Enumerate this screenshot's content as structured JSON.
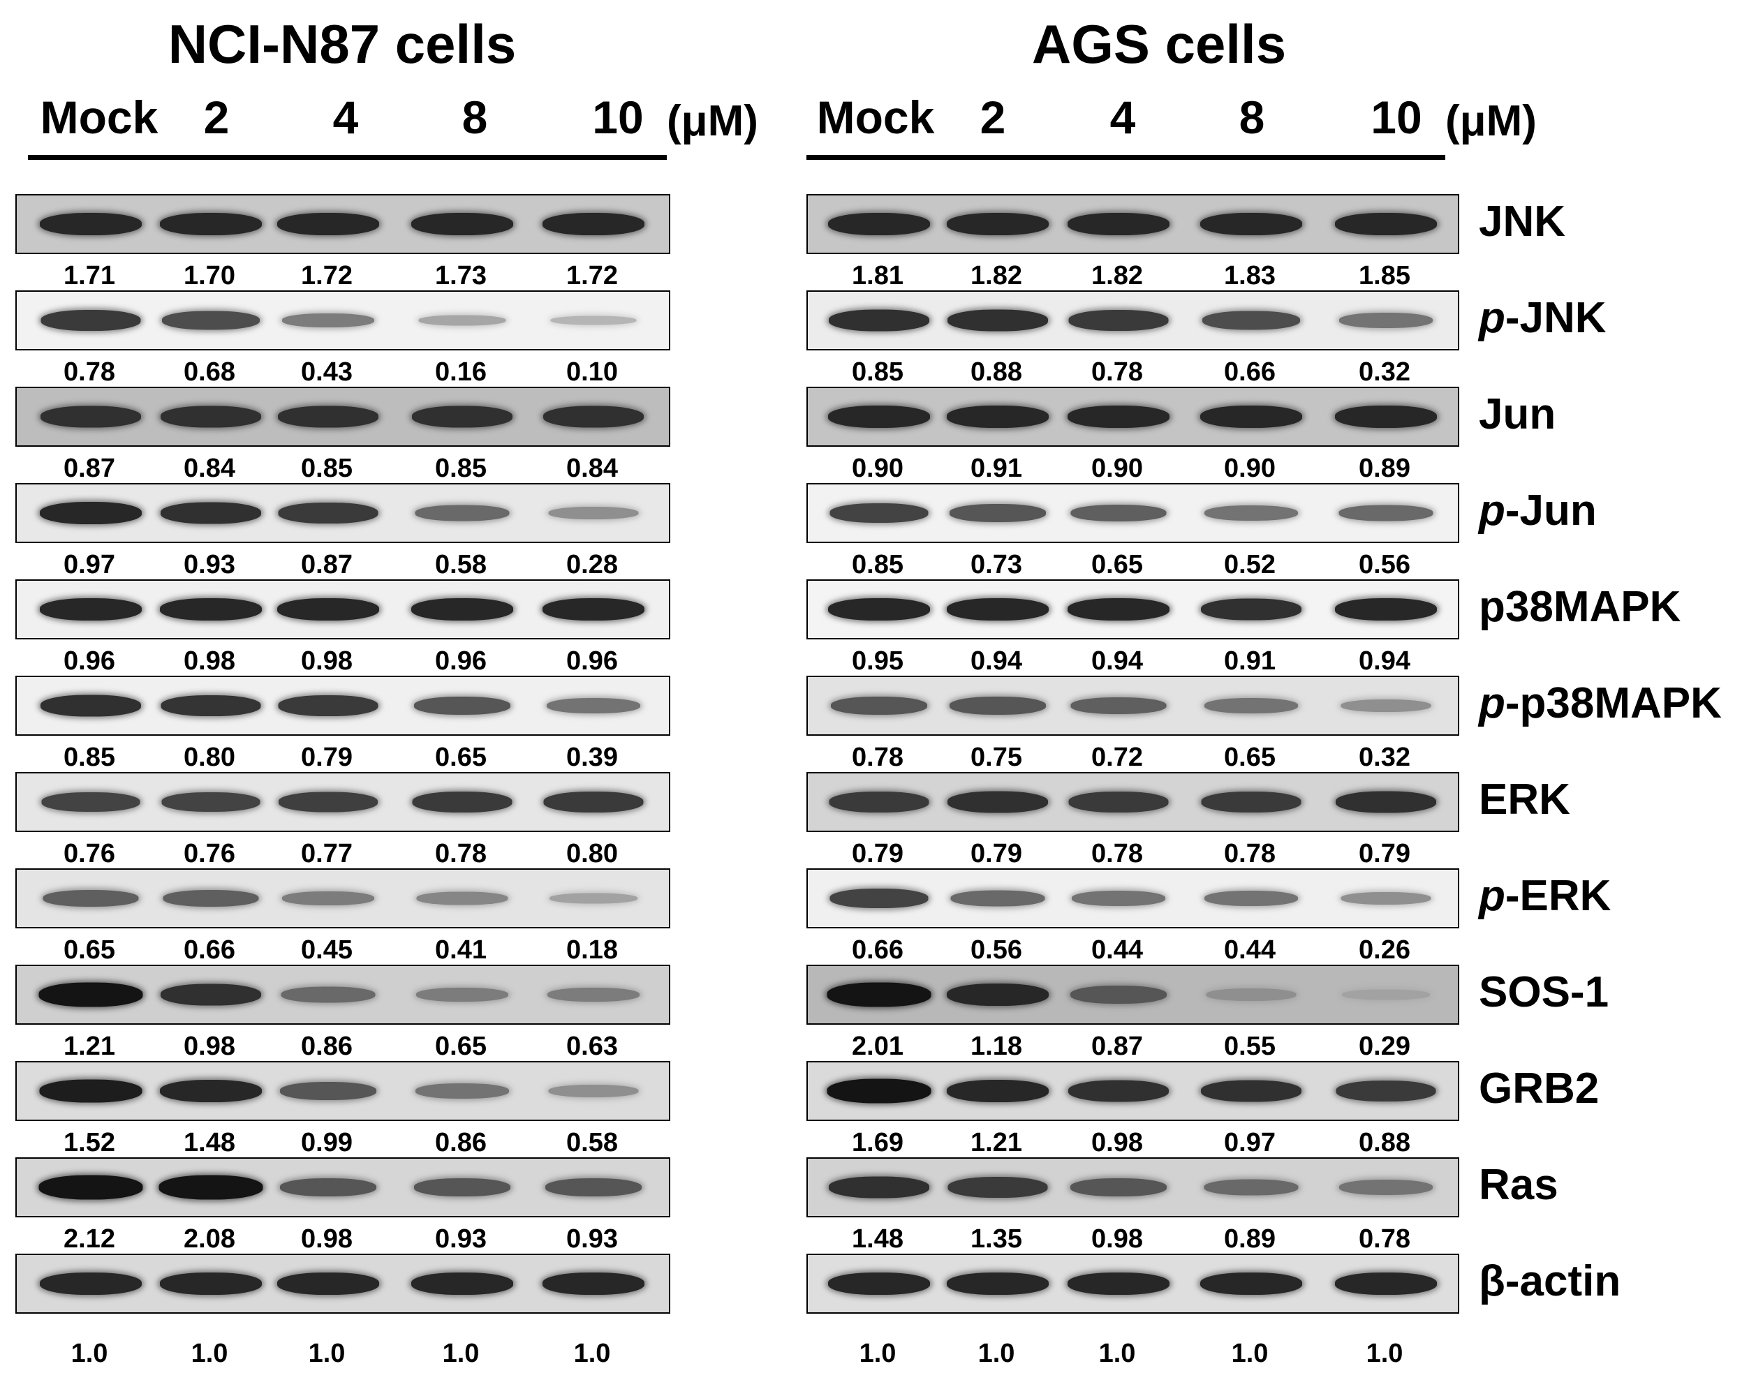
{
  "panels": [
    {
      "title": "NCI-N87 cells",
      "lanes": [
        "Mock",
        "2",
        "4",
        "8",
        "10"
      ],
      "unit": "(μM)",
      "rows": [
        {
          "ratios": [
            "1.71",
            "1.70",
            "1.72",
            "1.73",
            "1.72"
          ],
          "levels": [
            0.85,
            0.85,
            0.85,
            0.85,
            0.85
          ],
          "bg": "#c8c8c8"
        },
        {
          "ratios": [
            "0.78",
            "0.68",
            "0.43",
            "0.16",
            "0.10"
          ],
          "levels": [
            0.75,
            0.65,
            0.4,
            0.18,
            0.1
          ],
          "bg": "#f2f2f2"
        },
        {
          "ratios": [
            "0.87",
            "0.84",
            "0.85",
            "0.85",
            "0.84"
          ],
          "levels": [
            0.8,
            0.8,
            0.8,
            0.8,
            0.8
          ],
          "bg": "#bdbdbd"
        },
        {
          "ratios": [
            "0.97",
            "0.93",
            "0.87",
            "0.58",
            "0.28"
          ],
          "levels": [
            0.85,
            0.8,
            0.75,
            0.5,
            0.3
          ],
          "bg": "#e8e8e8"
        },
        {
          "ratios": [
            "0.96",
            "0.98",
            "0.98",
            "0.96",
            "0.96"
          ],
          "levels": [
            0.85,
            0.85,
            0.85,
            0.85,
            0.85
          ],
          "bg": "#f0f0f0"
        },
        {
          "ratios": [
            "0.85",
            "0.80",
            "0.79",
            "0.65",
            "0.39"
          ],
          "levels": [
            0.8,
            0.78,
            0.75,
            0.6,
            0.45
          ],
          "bg": "#f0f0f0"
        },
        {
          "ratios": [
            "0.76",
            "0.76",
            "0.77",
            "0.78",
            "0.80"
          ],
          "levels": [
            0.7,
            0.7,
            0.72,
            0.75,
            0.75
          ],
          "bg": "#e6e6e6"
        },
        {
          "ratios": [
            "0.65",
            "0.66",
            "0.45",
            "0.41",
            "0.18"
          ],
          "levels": [
            0.55,
            0.55,
            0.4,
            0.35,
            0.2
          ],
          "bg": "#e4e4e4"
        },
        {
          "ratios": [
            "1.21",
            "0.98",
            "0.86",
            "0.65",
            "0.63"
          ],
          "levels": [
            0.95,
            0.8,
            0.5,
            0.4,
            0.4
          ],
          "bg": "#cfcfcf"
        },
        {
          "ratios": [
            "1.52",
            "1.48",
            "0.99",
            "0.86",
            "0.58"
          ],
          "levels": [
            0.9,
            0.85,
            0.6,
            0.45,
            0.3
          ],
          "bg": "#dcdcdc"
        },
        {
          "ratios": [
            "2.12",
            "2.08",
            "0.98",
            "0.93",
            "0.93"
          ],
          "levels": [
            0.95,
            0.95,
            0.6,
            0.6,
            0.6
          ],
          "bg": "#d6d6d6"
        },
        {
          "ratios": [
            "1.0",
            "1.0",
            "1.0",
            "1.0",
            "1.0"
          ],
          "levels": [
            0.85,
            0.85,
            0.85,
            0.85,
            0.85
          ],
          "bg": "#d9d9d9"
        }
      ]
    },
    {
      "title": "AGS cells",
      "lanes": [
        "Mock",
        "2",
        "4",
        "8",
        "10"
      ],
      "unit": "(μM)",
      "rows": [
        {
          "ratios": [
            "1.81",
            "1.82",
            "1.82",
            "1.83",
            "1.85"
          ],
          "levels": [
            0.85,
            0.85,
            0.85,
            0.85,
            0.85
          ],
          "bg": "#c6c6c6"
        },
        {
          "ratios": [
            "0.85",
            "0.88",
            "0.78",
            "0.66",
            "0.32"
          ],
          "levels": [
            0.8,
            0.8,
            0.75,
            0.65,
            0.45
          ],
          "bg": "#ececec"
        },
        {
          "ratios": [
            "0.90",
            "0.91",
            "0.90",
            "0.90",
            "0.89"
          ],
          "levels": [
            0.85,
            0.85,
            0.85,
            0.85,
            0.85
          ],
          "bg": "#c4c4c4"
        },
        {
          "ratios": [
            "0.85",
            "0.73",
            "0.65",
            "0.52",
            "0.56"
          ],
          "levels": [
            0.7,
            0.6,
            0.55,
            0.45,
            0.5
          ],
          "bg": "#f2f2f2"
        },
        {
          "ratios": [
            "0.95",
            "0.94",
            "0.94",
            "0.91",
            "0.94"
          ],
          "levels": [
            0.85,
            0.85,
            0.85,
            0.8,
            0.85
          ],
          "bg": "#f4f4f4"
        },
        {
          "ratios": [
            "0.78",
            "0.75",
            "0.72",
            "0.65",
            "0.32"
          ],
          "levels": [
            0.6,
            0.6,
            0.55,
            0.45,
            0.3
          ],
          "bg": "#e2e2e2"
        },
        {
          "ratios": [
            "0.79",
            "0.79",
            "0.78",
            "0.78",
            "0.79"
          ],
          "levels": [
            0.75,
            0.8,
            0.75,
            0.75,
            0.8
          ],
          "bg": "#d4d4d4"
        },
        {
          "ratios": [
            "0.66",
            "0.56",
            "0.44",
            "0.44",
            "0.26"
          ],
          "levels": [
            0.7,
            0.5,
            0.45,
            0.45,
            0.3
          ],
          "bg": "#f0f0f0"
        },
        {
          "ratios": [
            "2.01",
            "1.18",
            "0.87",
            "0.55",
            "0.29"
          ],
          "levels": [
            0.95,
            0.85,
            0.6,
            0.3,
            0.2
          ],
          "bg": "#b8b8b8"
        },
        {
          "ratios": [
            "1.69",
            "1.21",
            "0.98",
            "0.97",
            "0.88"
          ],
          "levels": [
            0.95,
            0.85,
            0.8,
            0.8,
            0.75
          ],
          "bg": "#dadada"
        },
        {
          "ratios": [
            "1.48",
            "1.35",
            "0.98",
            "0.89",
            "0.78"
          ],
          "levels": [
            0.8,
            0.75,
            0.6,
            0.5,
            0.45
          ],
          "bg": "#d2d2d2"
        },
        {
          "ratios": [
            "1.0",
            "1.0",
            "1.0",
            "1.0",
            "1.0"
          ],
          "levels": [
            0.85,
            0.85,
            0.85,
            0.85,
            0.85
          ],
          "bg": "#dedede"
        }
      ]
    }
  ],
  "proteins": [
    {
      "prefix": "",
      "name": "JNK"
    },
    {
      "prefix": "p",
      "name": "-JNK"
    },
    {
      "prefix": "",
      "name": "Jun"
    },
    {
      "prefix": "p",
      "name": "-Jun"
    },
    {
      "prefix": "",
      "name": "p38MAPK"
    },
    {
      "prefix": "p",
      "name": "-p38MAPK"
    },
    {
      "prefix": "",
      "name": "ERK"
    },
    {
      "prefix": "p",
      "name": "-ERK"
    },
    {
      "prefix": "",
      "name": "SOS-1"
    },
    {
      "prefix": "",
      "name": "GRB2"
    },
    {
      "prefix": "",
      "name": "Ras"
    },
    {
      "prefix": "",
      "name": "β-actin"
    }
  ]
}
